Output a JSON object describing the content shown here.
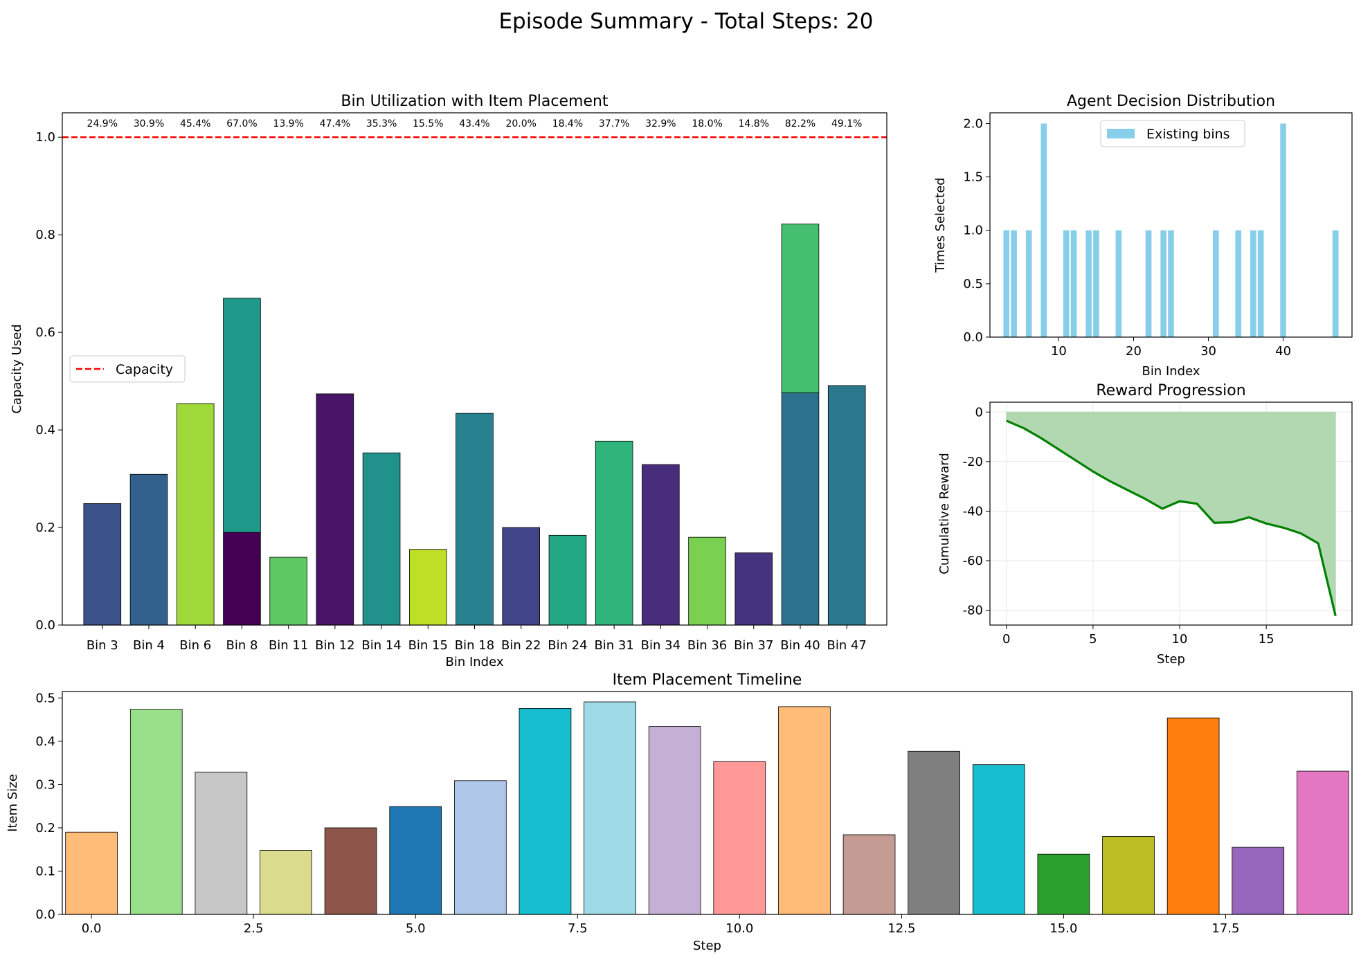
{
  "figure": {
    "title": "Episode Summary - Total Steps: 20"
  },
  "chart_data": [
    {
      "id": "bin_utilization",
      "type": "bar",
      "stacked": true,
      "title": "Bin Utilization with Item Placement",
      "xlabel": "Bin Index",
      "ylabel": "Capacity Used",
      "ylim": [
        0,
        1.05
      ],
      "yticks": [
        0.0,
        0.2,
        0.4,
        0.6,
        0.8,
        1.0
      ],
      "categories": [
        "Bin 3",
        "Bin 4",
        "Bin 6",
        "Bin 8",
        "Bin 11",
        "Bin 12",
        "Bin 14",
        "Bin 15",
        "Bin 18",
        "Bin 22",
        "Bin 24",
        "Bin 31",
        "Bin 34",
        "Bin 36",
        "Bin 37",
        "Bin 40",
        "Bin 47"
      ],
      "segments": [
        [
          {
            "value": 0.249,
            "color": "#3b528b"
          }
        ],
        [
          {
            "value": 0.309,
            "color": "#33618d"
          }
        ],
        [
          {
            "value": 0.454,
            "color": "#9fda3a"
          }
        ],
        [
          {
            "value": 0.19,
            "color": "#440154"
          },
          {
            "value": 0.48,
            "color": "#1f9a8a"
          }
        ],
        [
          {
            "value": 0.139,
            "color": "#5ec962"
          }
        ],
        [
          {
            "value": 0.474,
            "color": "#481467"
          }
        ],
        [
          {
            "value": 0.353,
            "color": "#21918c"
          }
        ],
        [
          {
            "value": 0.155,
            "color": "#bddf26"
          }
        ],
        [
          {
            "value": 0.434,
            "color": "#26828e"
          }
        ],
        [
          {
            "value": 0.2,
            "color": "#414487"
          }
        ],
        [
          {
            "value": 0.184,
            "color": "#22a884"
          }
        ],
        [
          {
            "value": 0.377,
            "color": "#2fb47c"
          }
        ],
        [
          {
            "value": 0.329,
            "color": "#472d7b"
          }
        ],
        [
          {
            "value": 0.18,
            "color": "#7ad151"
          }
        ],
        [
          {
            "value": 0.148,
            "color": "#46337e"
          }
        ],
        [
          {
            "value": 0.476,
            "color": "#2c728e"
          },
          {
            "value": 0.346,
            "color": "#44bf70"
          }
        ],
        [
          {
            "value": 0.491,
            "color": "#2a788e"
          }
        ]
      ],
      "percent_labels": [
        "24.9%",
        "30.9%",
        "45.4%",
        "67.0%",
        "13.9%",
        "47.4%",
        "35.3%",
        "15.5%",
        "43.4%",
        "20.0%",
        "18.4%",
        "37.7%",
        "32.9%",
        "18.0%",
        "14.8%",
        "82.2%",
        "49.1%"
      ],
      "capacity_line": {
        "value": 1.0,
        "color": "#ff0000",
        "label": "Capacity"
      },
      "legend_position": "center-left"
    },
    {
      "id": "decision_distribution",
      "type": "bar",
      "title": "Agent Decision Distribution",
      "xlabel": "Bin Index",
      "ylabel": "Times Selected",
      "xlim": [
        0.8,
        49.2
      ],
      "ylim": [
        0,
        2.1
      ],
      "xticks": [
        10,
        20,
        30,
        40
      ],
      "yticks": [
        0.0,
        0.5,
        1.0,
        1.5,
        2.0
      ],
      "x": [
        3,
        4,
        6,
        8,
        11,
        12,
        14,
        15,
        18,
        22,
        24,
        25,
        31,
        34,
        36,
        37,
        40,
        47
      ],
      "values": [
        1,
        1,
        1,
        2,
        1,
        1,
        1,
        1,
        1,
        1,
        1,
        1,
        1,
        1,
        1,
        1,
        2,
        1
      ],
      "color": "#87ceeb",
      "series_name": "Existing bins",
      "legend_position": "upper-center"
    },
    {
      "id": "reward_progression",
      "type": "area",
      "title": "Reward Progression",
      "xlabel": "Step",
      "ylabel": "Cumulative Reward",
      "xlim": [
        -0.95,
        19.95
      ],
      "ylim": [
        -86,
        4
      ],
      "xticks": [
        0,
        5,
        10,
        15
      ],
      "yticks": [
        0,
        -20,
        -40,
        -60,
        -80
      ],
      "grid": true,
      "x": [
        0,
        1,
        2,
        3,
        4,
        5,
        6,
        7,
        8,
        9,
        10,
        11,
        12,
        13,
        14,
        15,
        16,
        17,
        18,
        19
      ],
      "y": [
        -3.5,
        -6.5,
        -10.5,
        -15,
        -19.5,
        -24,
        -28,
        -31.5,
        -35,
        -39,
        -36,
        -37,
        -44.7,
        -44.5,
        -42.5,
        -45,
        -46.7,
        -49,
        -53,
        -82.3
      ],
      "line_color": "#008000",
      "fill_color": "#b2d8b2"
    },
    {
      "id": "placement_timeline",
      "type": "bar",
      "title": "Item Placement Timeline",
      "xlabel": "Step",
      "ylabel": "Item Size",
      "xlim": [
        -0.45,
        19.45
      ],
      "ylim": [
        0,
        0.515
      ],
      "xticks": [
        0.0,
        2.5,
        5.0,
        7.5,
        10.0,
        12.5,
        15.0,
        17.5
      ],
      "yticks": [
        0.0,
        0.1,
        0.2,
        0.3,
        0.4,
        0.5
      ],
      "x": [
        0,
        1,
        2,
        3,
        4,
        5,
        6,
        7,
        8,
        9,
        10,
        11,
        12,
        13,
        14,
        15,
        16,
        17,
        18,
        19
      ],
      "values": [
        0.19,
        0.474,
        0.329,
        0.148,
        0.2,
        0.249,
        0.309,
        0.476,
        0.491,
        0.434,
        0.353,
        0.48,
        0.184,
        0.377,
        0.346,
        0.139,
        0.18,
        0.454,
        0.155,
        0.331
      ],
      "colors": [
        "#ffbb78",
        "#98df8a",
        "#c7c7c7",
        "#dbdb8d",
        "#8c564b",
        "#1f77b4",
        "#aec7e8",
        "#17becf",
        "#9edae5",
        "#c5b0d5",
        "#ff9896",
        "#ffbb78",
        "#c49c94",
        "#7f7f7f",
        "#17becf",
        "#2ca02c",
        "#bcbd22",
        "#ff7f0e",
        "#9467bd",
        "#e377c2"
      ]
    }
  ]
}
